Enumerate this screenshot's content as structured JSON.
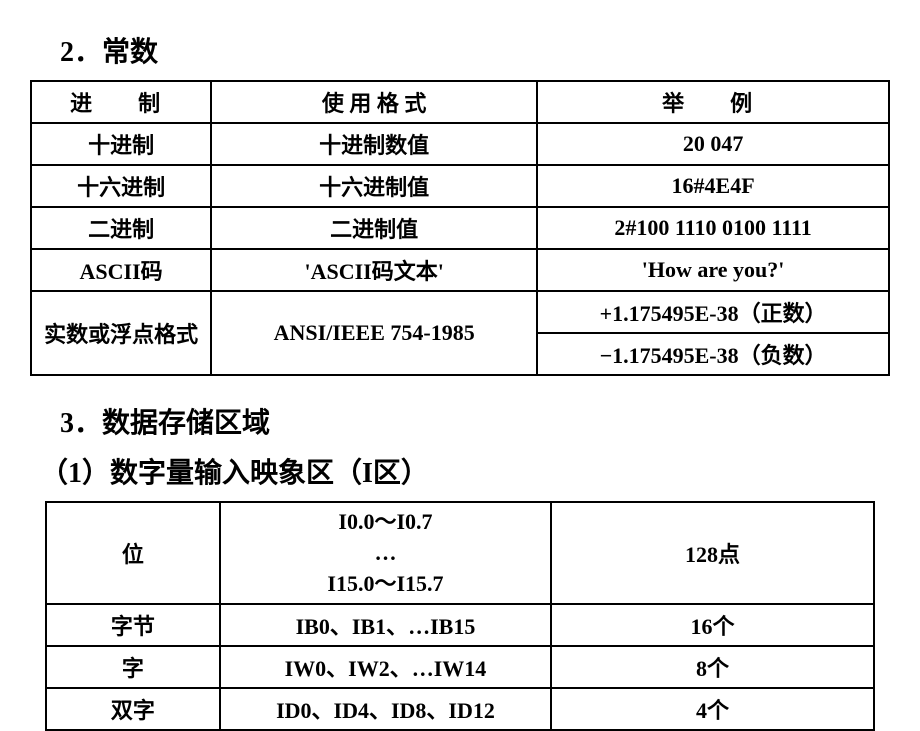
{
  "section2": {
    "title": "2．常数",
    "table": {
      "header": {
        "c1": "进　制",
        "c2": "使 用 格 式",
        "c3": "举　例"
      },
      "rows": [
        {
          "c1": "十进制",
          "c2": "十进制数值",
          "c3": "20 047"
        },
        {
          "c1": "十六进制",
          "c2": "十六进制值",
          "c3": "16#4E4F"
        },
        {
          "c1": "二进制",
          "c2": "二进制值",
          "c3": "2#100 1110 0100 1111"
        },
        {
          "c1": "ASCII码",
          "c2": "'ASCII码文本'",
          "c3": "'How are you?'"
        }
      ],
      "float_row": {
        "c1": "实数或浮点格式",
        "c2": "ANSI/IEEE 754-1985",
        "c3a": "+1.175495E-38（正数）",
        "c3b": "−1.175495E-38（负数）"
      }
    }
  },
  "section3": {
    "title": "3．数据存储区域",
    "sub": "（1）数字量输入映象区（I区）",
    "table": {
      "rows": [
        {
          "c1": "位",
          "c2": "I0.0～I0.7\n…\nI15.0～I15.7",
          "c3": "128点"
        },
        {
          "c1": "字节",
          "c2": "IB0、IB1、…IB15",
          "c3": "16个"
        },
        {
          "c1": "字",
          "c2": "IW0、IW2、…IW14",
          "c3": "8个"
        },
        {
          "c1": "双字",
          "c2": "ID0、ID4、ID8、ID12",
          "c3": "4个"
        }
      ]
    }
  },
  "style": {
    "bg": "#ffffff",
    "fg": "#000000",
    "border": "#000000",
    "cell_fontsize": 22,
    "heading_fontsize": 28,
    "border_width": 2
  }
}
